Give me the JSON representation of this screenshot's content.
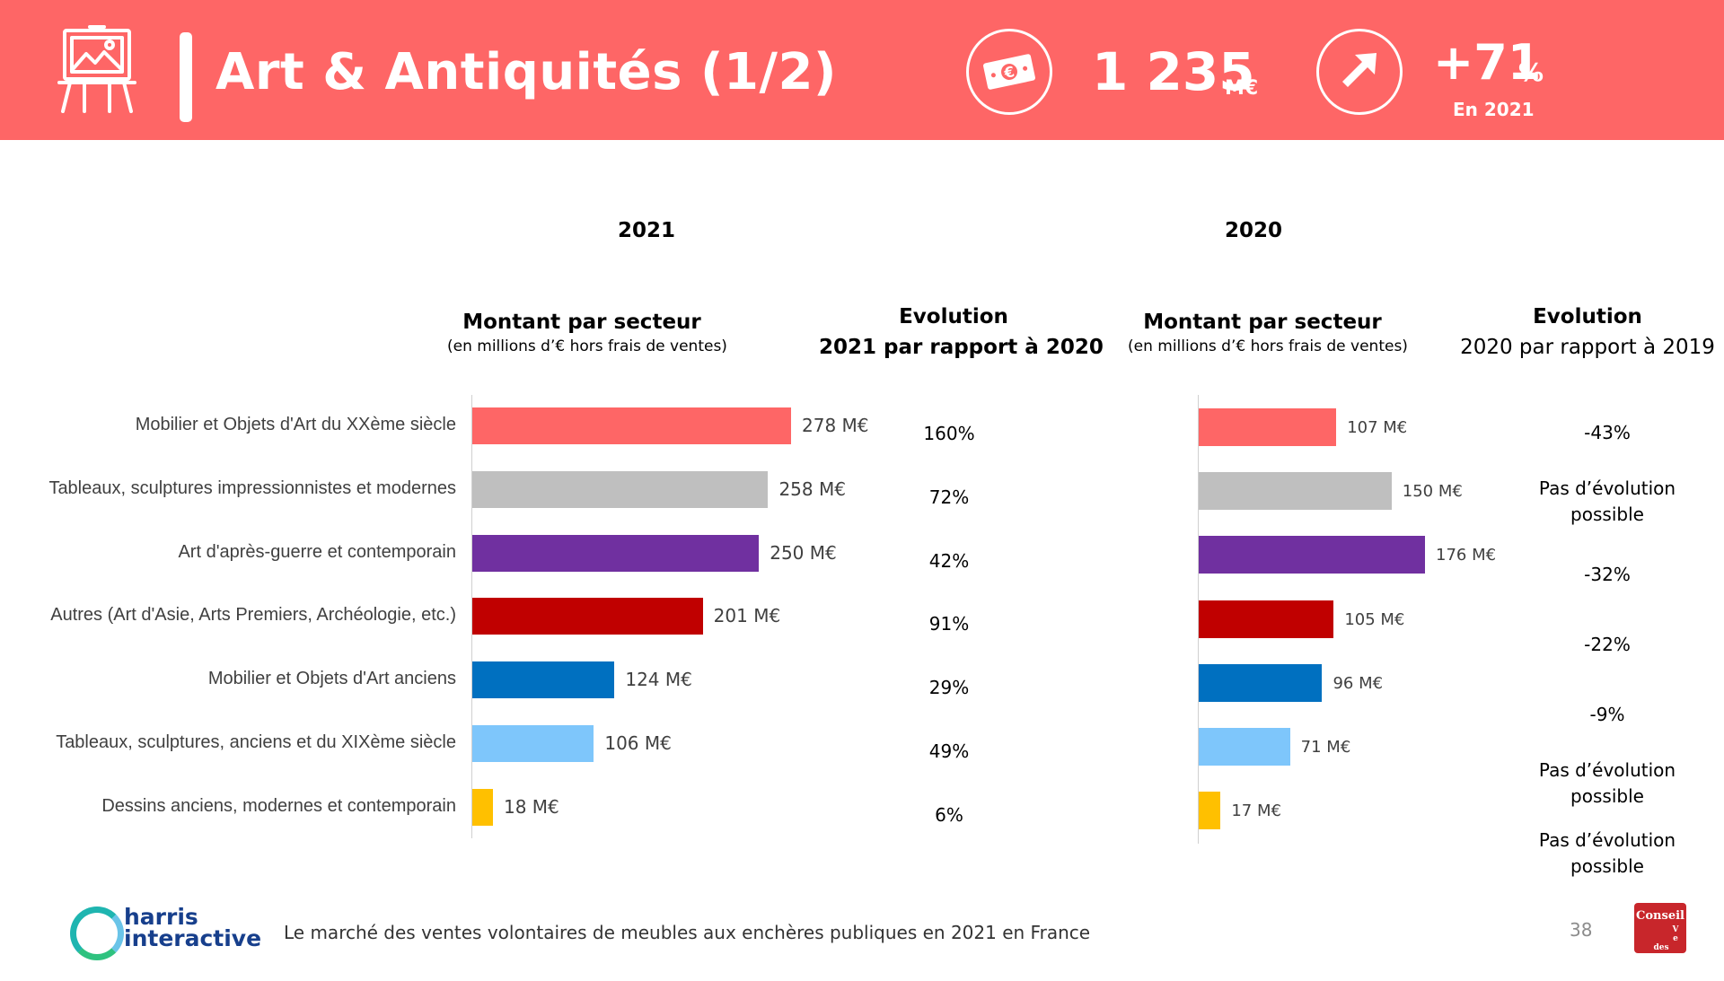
{
  "header": {
    "title": "Art & Antiquités (1/2)",
    "kpi_amount_value": "1 235",
    "kpi_amount_unit": "M€",
    "kpi_growth_value": "+71",
    "kpi_growth_unit": "%",
    "kpi_growth_sub": "En 2021",
    "banner_color": "#fe6666"
  },
  "headers": {
    "year_2021": "2021",
    "year_2020": "2020",
    "montant_title": "Montant  par secteur",
    "montant_sub": "(en millions d’€ hors frais de ventes)",
    "evo2021_line1": "Evolution",
    "evo2021_line2": "2021 par rapport à 2020",
    "evo2020_line1": "Evolution",
    "evo2020_line2": "2020 par rapport à 2019"
  },
  "chart_data": [
    {
      "type": "bar",
      "orientation": "horizontal",
      "title": "2021 - Montant par secteur",
      "unit": "M€",
      "categories": [
        "Mobilier et Objets d'Art du XXème siècle",
        "Tableaux, sculptures impressionnistes et modernes",
        "Art d'après-guerre et contemporain",
        "Autres (Art d'Asie, Arts Premiers, Archéologie, etc.)",
        "Mobilier et Objets d'Art anciens",
        "Tableaux, sculptures, anciens et du XIXème siècle",
        "Dessins anciens, modernes et contemporain"
      ],
      "values": [
        278,
        258,
        250,
        201,
        124,
        106,
        18
      ],
      "labels": [
        "278  M€",
        "258  M€",
        "250  M€",
        "201  M€",
        "124  M€",
        "106  M€",
        "18  M€"
      ],
      "colors": [
        "#fe6666",
        "#bfbfbf",
        "#7030a0",
        "#c00000",
        "#0070c0",
        "#7ec6fb",
        "#ffc000"
      ],
      "evolution": [
        "160%",
        "72%",
        "42%",
        "91%",
        "29%",
        "49%",
        "6%"
      ]
    },
    {
      "type": "bar",
      "orientation": "horizontal",
      "title": "2020 - Montant par secteur",
      "unit": "M€",
      "values": [
        107,
        150,
        176,
        105,
        96,
        71,
        17
      ],
      "labels": [
        "107  M€",
        "150  M€",
        "176  M€",
        "105  M€",
        "96  M€",
        "71  M€",
        "17  M€"
      ],
      "colors": [
        "#fe6666",
        "#bfbfbf",
        "#7030a0",
        "#c00000",
        "#0070c0",
        "#7ec6fb",
        "#ffc000"
      ],
      "evolution": [
        "-43%",
        "Pas d’évolution possible",
        "-32%",
        "-22%",
        "-9%",
        "Pas d’évolution possible",
        "Pas d’évolution possible"
      ]
    }
  ],
  "footer": {
    "caption": "Le marché des ventes volontaires de meubles aux enchères publiques en 2021 en France",
    "page_number": "38",
    "brand_line1": "harris",
    "brand_line2": "interactive",
    "cvv_logo_text": "Conseil des Ventes"
  }
}
